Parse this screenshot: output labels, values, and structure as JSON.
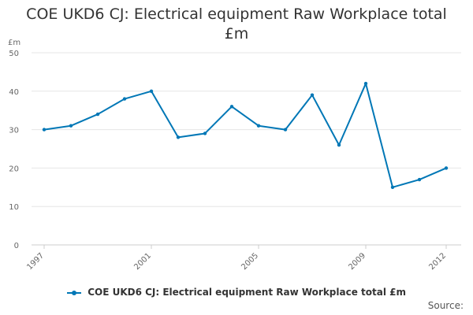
{
  "chart_data": {
    "type": "line",
    "title": "COE UKD6 CJ: Electrical equipment Raw Workplace total £m",
    "unit_label": "£m",
    "xlabel": "",
    "ylabel": "",
    "x": [
      1997,
      1998,
      1999,
      2000,
      2001,
      2002,
      2003,
      2004,
      2005,
      2006,
      2007,
      2008,
      2009,
      2010,
      2011,
      2012
    ],
    "x_tick_labels": [
      "1997",
      "2001",
      "2005",
      "2009",
      "2012"
    ],
    "series": [
      {
        "name": "COE UKD6 CJ: Electrical equipment Raw Workplace total £m",
        "color": "#0077b6",
        "values": [
          30,
          31,
          34,
          38,
          40,
          28,
          29,
          36,
          31,
          30,
          39,
          26,
          42,
          15,
          17,
          20
        ]
      }
    ],
    "ylim": [
      0,
      50
    ],
    "y_ticks": [
      0,
      10,
      20,
      30,
      40,
      50
    ],
    "grid": "horizontal",
    "legend_position": "bottom"
  },
  "legend": {
    "label": "COE UKD6 CJ: Electrical equipment Raw Workplace total £m"
  },
  "source_label": "Source:"
}
